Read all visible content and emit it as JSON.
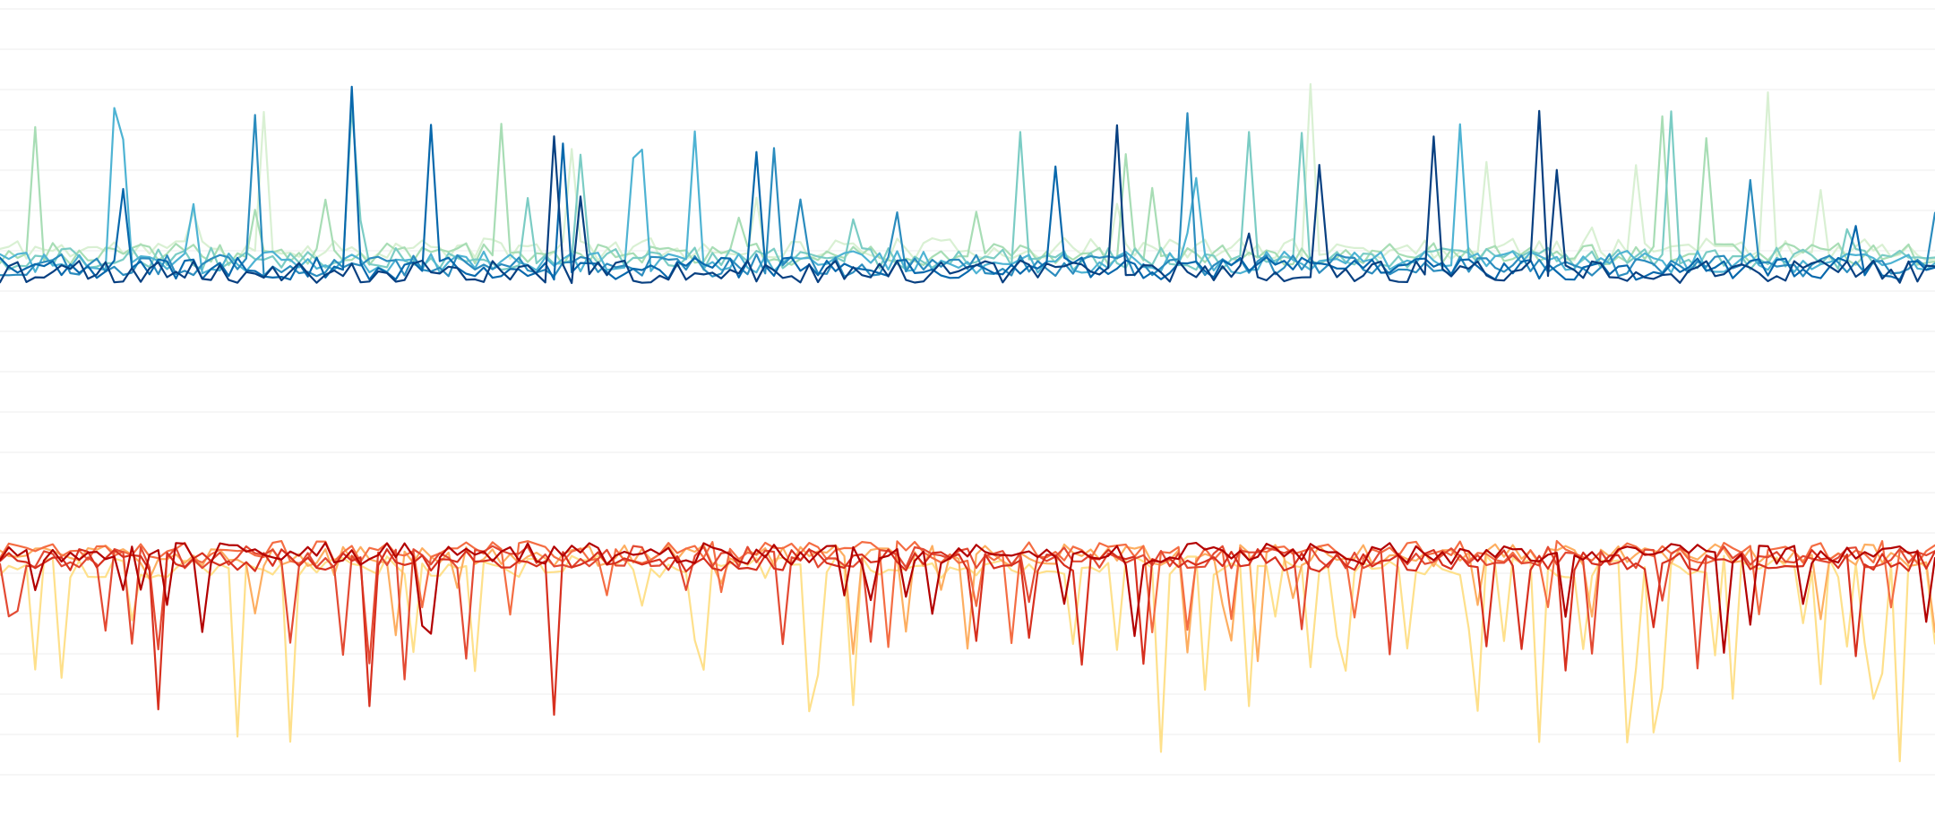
{
  "chart_data": {
    "type": "line",
    "title": "",
    "xlabel": "",
    "ylabel": "",
    "grid": true,
    "legend": "none",
    "xlim": [
      0,
      220
    ],
    "ylim": [
      -5,
      5
    ],
    "y_gridlines": [
      -4.5,
      -4,
      -3.5,
      -3,
      -2.5,
      -2,
      -1.5,
      -1,
      -0.5,
      0,
      0.5,
      1,
      1.5,
      2,
      2.5,
      3,
      3.5,
      4,
      4.5,
      5
    ],
    "upper_group": {
      "baseline": 1.8,
      "spikes": "upward",
      "series": [
        {
          "color": "#d9f0d3",
          "seed": 11,
          "offset": 0.22,
          "spike_prob": 0.05,
          "spike_max": 1.9
        },
        {
          "color": "#a8ddb5",
          "seed": 23,
          "offset": 0.16,
          "spike_prob": 0.05,
          "spike_max": 1.6
        },
        {
          "color": "#7bccc4",
          "seed": 37,
          "offset": 0.1,
          "spike_prob": 0.04,
          "spike_max": 1.7
        },
        {
          "color": "#4eb3d3",
          "seed": 41,
          "offset": 0.06,
          "spike_prob": 0.05,
          "spike_max": 1.9
        },
        {
          "color": "#2b8cbe",
          "seed": 53,
          "offset": 0.02,
          "spike_prob": 0.05,
          "spike_max": 2.4
        },
        {
          "color": "#0868ac",
          "seed": 67,
          "offset": -0.02,
          "spike_prob": 0.04,
          "spike_max": 2.0
        },
        {
          "color": "#084081",
          "seed": 79,
          "offset": -0.06,
          "spike_prob": 0.03,
          "spike_max": 1.6
        }
      ]
    },
    "lower_group": {
      "baseline": -1.8,
      "spikes": "downward",
      "series": [
        {
          "color": "#fee08b",
          "seed": 101,
          "offset": -0.12,
          "spike_prob": 0.14,
          "spike_max": 2.2
        },
        {
          "color": "#fdae61",
          "seed": 113,
          "offset": 0.02,
          "spike_prob": 0.08,
          "spike_max": 0.9
        },
        {
          "color": "#f46d43",
          "seed": 127,
          "offset": 0.06,
          "spike_prob": 0.08,
          "spike_max": 0.9
        },
        {
          "color": "#e34a33",
          "seed": 131,
          "offset": 0.0,
          "spike_prob": 0.07,
          "spike_max": 1.1
        },
        {
          "color": "#d7301f",
          "seed": 149,
          "offset": -0.04,
          "spike_prob": 0.06,
          "spike_max": 1.6
        },
        {
          "color": "#b30000",
          "seed": 157,
          "offset": 0.04,
          "spike_prob": 0.06,
          "spike_max": 0.9
        }
      ]
    }
  }
}
